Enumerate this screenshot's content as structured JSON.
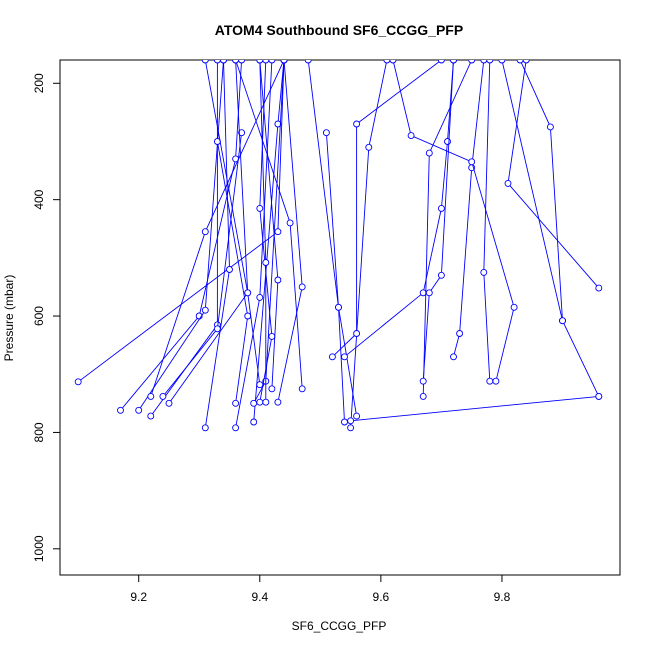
{
  "chart_data": {
    "type": "line",
    "title": "ATOM4 Southbound SF6_CCGG_PFP",
    "xlabel": "SF6_CCGG_PFP",
    "ylabel": "Pressure (mbar)",
    "xlim": [
      9.07,
      9.995
    ],
    "ylim": [
      1045,
      160
    ],
    "y_reversed": true,
    "xticks": [
      9.2,
      9.4,
      9.6,
      9.8
    ],
    "xtick_labels": [
      "9.2",
      "9.4",
      "9.6",
      "9.8"
    ],
    "yticks": [
      200,
      400,
      600,
      800,
      1000
    ],
    "ytick_labels": [
      "200",
      "400",
      "600",
      "800",
      "1000"
    ],
    "series_color": "#0000ff",
    "grid": false,
    "legend": "none",
    "profiles": [
      [
        [
          9.1,
          713
        ],
        [
          9.43,
          455
        ],
        [
          9.44,
          160
        ]
      ],
      [
        [
          9.17,
          762
        ],
        [
          9.3,
          600
        ],
        [
          9.36,
          330
        ],
        [
          9.37,
          160
        ]
      ],
      [
        [
          9.2,
          762
        ],
        [
          9.31,
          590
        ],
        [
          9.34,
          160
        ]
      ],
      [
        [
          9.22,
          772
        ],
        [
          9.33,
          615
        ],
        [
          9.33,
          160
        ]
      ],
      [
        [
          9.22,
          738
        ],
        [
          9.31,
          455
        ],
        [
          9.44,
          160
        ]
      ],
      [
        [
          9.24,
          738
        ],
        [
          9.33,
          622
        ],
        [
          9.37,
          285
        ]
      ],
      [
        [
          9.25,
          750
        ],
        [
          9.38,
          560
        ],
        [
          9.36,
          160
        ]
      ],
      [
        [
          9.31,
          792
        ],
        [
          9.35,
          520
        ],
        [
          9.34,
          160
        ]
      ],
      [
        [
          9.36,
          792
        ],
        [
          9.4,
          568
        ],
        [
          9.42,
          160
        ]
      ],
      [
        [
          9.36,
          750
        ],
        [
          9.38,
          600
        ],
        [
          9.33,
          300
        ]
      ],
      [
        [
          9.39,
          782
        ],
        [
          9.43,
          270
        ],
        [
          9.44,
          160
        ]
      ],
      [
        [
          9.39,
          750
        ],
        [
          9.41,
          712
        ],
        [
          9.44,
          160
        ]
      ],
      [
        [
          9.4,
          718
        ],
        [
          9.38,
          560
        ],
        [
          9.31,
          160
        ]
      ],
      [
        [
          9.4,
          748
        ],
        [
          9.42,
          635
        ],
        [
          9.4,
          415
        ],
        [
          9.41,
          160
        ]
      ],
      [
        [
          9.41,
          748
        ],
        [
          9.41,
          508
        ],
        [
          9.4,
          160
        ]
      ],
      [
        [
          9.42,
          725
        ],
        [
          9.43,
          538
        ],
        [
          9.4,
          160
        ]
      ],
      [
        [
          9.43,
          748
        ],
        [
          9.47,
          550
        ],
        [
          9.44,
          160
        ]
      ],
      [
        [
          9.47,
          725
        ],
        [
          9.45,
          440
        ],
        [
          9.36,
          160
        ]
      ],
      [
        [
          9.54,
          782
        ],
        [
          9.53,
          585
        ],
        [
          9.51,
          285
        ]
      ],
      [
        [
          9.55,
          792
        ],
        [
          9.58,
          310
        ],
        [
          9.61,
          160
        ]
      ],
      [
        [
          9.55,
          780
        ],
        [
          9.96,
          738
        ]
      ],
      [
        [
          9.56,
          772
        ],
        [
          9.53,
          585
        ],
        [
          9.48,
          160
        ]
      ],
      [
        [
          9.52,
          670
        ],
        [
          9.56,
          630
        ],
        [
          9.56,
          270
        ],
        [
          9.7,
          160
        ]
      ],
      [
        [
          9.54,
          670
        ],
        [
          9.67,
          560
        ],
        [
          9.7,
          415
        ],
        [
          9.71,
          300
        ],
        [
          9.72,
          160
        ]
      ],
      [
        [
          9.67,
          738
        ],
        [
          9.68,
          320
        ],
        [
          9.75,
          160
        ]
      ],
      [
        [
          9.67,
          712
        ],
        [
          9.68,
          560
        ],
        [
          9.7,
          530
        ],
        [
          9.72,
          160
        ]
      ],
      [
        [
          9.72,
          670
        ],
        [
          9.73,
          630
        ],
        [
          9.75,
          345
        ],
        [
          9.77,
          160
        ]
      ],
      [
        [
          9.78,
          712
        ],
        [
          9.77,
          525
        ],
        [
          9.78,
          160
        ]
      ],
      [
        [
          9.79,
          712
        ],
        [
          9.82,
          585
        ],
        [
          9.75,
          335
        ],
        [
          9.65,
          290
        ],
        [
          9.62,
          160
        ]
      ],
      [
        [
          9.9,
          608
        ],
        [
          9.88,
          275
        ],
        [
          9.83,
          160
        ]
      ],
      [
        [
          9.96,
          552
        ],
        [
          9.81,
          372
        ],
        [
          9.84,
          160
        ]
      ],
      [
        [
          9.96,
          738
        ],
        [
          9.9,
          608
        ],
        [
          9.8,
          160
        ]
      ]
    ]
  }
}
